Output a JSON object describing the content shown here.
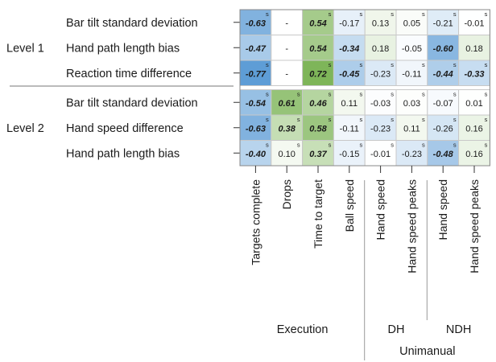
{
  "chart_data": {
    "type": "heatmap",
    "title": "",
    "row_groups": [
      {
        "label": "Level 1",
        "rows": [
          {
            "label": "Bar tilt standard deviation",
            "cells": [
              {
                "text": "-0.63",
                "value": -0.63,
                "sig": true,
                "bold": true
              },
              {
                "text": "-",
                "value": null,
                "sig": false,
                "bold": false
              },
              {
                "text": "0.54",
                "value": 0.54,
                "sig": true,
                "bold": true
              },
              {
                "text": "-0.17",
                "value": -0.17,
                "sig": true,
                "bold": false
              },
              {
                "text": "0.13",
                "value": 0.13,
                "sig": true,
                "bold": false
              },
              {
                "text": "0.05",
                "value": 0.05,
                "sig": true,
                "bold": false
              },
              {
                "text": "-0.21",
                "value": -0.21,
                "sig": true,
                "bold": false
              },
              {
                "text": "-0.01",
                "value": -0.01,
                "sig": true,
                "bold": false
              }
            ]
          },
          {
            "label": "Hand path length bias",
            "cells": [
              {
                "text": "-0.47",
                "value": -0.47,
                "sig": false,
                "bold": true
              },
              {
                "text": "-",
                "value": null,
                "sig": false,
                "bold": false
              },
              {
                "text": "0.54",
                "value": 0.54,
                "sig": false,
                "bold": true
              },
              {
                "text": "-0.34",
                "value": -0.34,
                "sig": false,
                "bold": true
              },
              {
                "text": "0.18",
                "value": 0.18,
                "sig": false,
                "bold": false
              },
              {
                "text": "-0.05",
                "value": -0.05,
                "sig": false,
                "bold": false
              },
              {
                "text": "-0.60",
                "value": -0.6,
                "sig": false,
                "bold": true
              },
              {
                "text": "0.18",
                "value": 0.18,
                "sig": false,
                "bold": false
              }
            ]
          },
          {
            "label": "Reaction time difference",
            "cells": [
              {
                "text": "-0.77",
                "value": -0.77,
                "sig": true,
                "bold": true
              },
              {
                "text": "-",
                "value": null,
                "sig": false,
                "bold": false
              },
              {
                "text": "0.72",
                "value": 0.72,
                "sig": true,
                "bold": true
              },
              {
                "text": "-0.45",
                "value": -0.45,
                "sig": true,
                "bold": true
              },
              {
                "text": "-0.23",
                "value": -0.23,
                "sig": true,
                "bold": false
              },
              {
                "text": "-0.11",
                "value": -0.11,
                "sig": true,
                "bold": false
              },
              {
                "text": "-0.44",
                "value": -0.44,
                "sig": true,
                "bold": true
              },
              {
                "text": "-0.33",
                "value": -0.33,
                "sig": true,
                "bold": true
              }
            ]
          }
        ]
      },
      {
        "label": "Level 2",
        "rows": [
          {
            "label": "Bar tilt standard deviation",
            "cells": [
              {
                "text": "-0.54",
                "value": -0.54,
                "sig": true,
                "bold": true
              },
              {
                "text": "0.61",
                "value": 0.61,
                "sig": true,
                "bold": true
              },
              {
                "text": "0.46",
                "value": 0.46,
                "sig": true,
                "bold": true
              },
              {
                "text": "0.11",
                "value": 0.11,
                "sig": true,
                "bold": false
              },
              {
                "text": "-0.03",
                "value": -0.03,
                "sig": true,
                "bold": false
              },
              {
                "text": "0.03",
                "value": 0.03,
                "sig": true,
                "bold": false
              },
              {
                "text": "-0.07",
                "value": -0.07,
                "sig": true,
                "bold": false
              },
              {
                "text": "0.01",
                "value": 0.01,
                "sig": true,
                "bold": false
              }
            ]
          },
          {
            "label": "Hand speed difference",
            "cells": [
              {
                "text": "-0.63",
                "value": -0.63,
                "sig": true,
                "bold": true
              },
              {
                "text": "0.38",
                "value": 0.38,
                "sig": true,
                "bold": true
              },
              {
                "text": "0.58",
                "value": 0.58,
                "sig": true,
                "bold": true
              },
              {
                "text": "-0.11",
                "value": -0.11,
                "sig": true,
                "bold": false
              },
              {
                "text": "-0.23",
                "value": -0.23,
                "sig": true,
                "bold": false
              },
              {
                "text": "0.11",
                "value": 0.11,
                "sig": true,
                "bold": false
              },
              {
                "text": "-0.26",
                "value": -0.26,
                "sig": true,
                "bold": false
              },
              {
                "text": "0.16",
                "value": 0.16,
                "sig": true,
                "bold": false
              }
            ]
          },
          {
            "label": "Hand path length bias",
            "cells": [
              {
                "text": "-0.40",
                "value": -0.4,
                "sig": true,
                "bold": true
              },
              {
                "text": "0.10",
                "value": 0.1,
                "sig": true,
                "bold": false
              },
              {
                "text": "0.37",
                "value": 0.37,
                "sig": true,
                "bold": true
              },
              {
                "text": "-0.15",
                "value": -0.15,
                "sig": true,
                "bold": false
              },
              {
                "text": "-0.01",
                "value": -0.01,
                "sig": true,
                "bold": false
              },
              {
                "text": "-0.23",
                "value": -0.23,
                "sig": true,
                "bold": false
              },
              {
                "text": "-0.48",
                "value": -0.48,
                "sig": true,
                "bold": true
              },
              {
                "text": "0.16",
                "value": 0.16,
                "sig": true,
                "bold": false
              }
            ]
          }
        ]
      }
    ],
    "columns": [
      "Targets complete",
      "Drops",
      "Time to target",
      "Ball speed",
      "Hand speed",
      "Hand speed peaks",
      "Hand speed",
      "Hand speed peaks"
    ],
    "column_groups": [
      {
        "label": "Execution",
        "columns": [
          0,
          1,
          2,
          3
        ]
      },
      {
        "label": "DH",
        "columns": [
          4,
          5
        ]
      },
      {
        "label": "NDH",
        "columns": [
          6,
          7
        ]
      }
    ],
    "super_groups": [
      {
        "label": "Unimanual",
        "columns": [
          4,
          5,
          6,
          7
        ]
      }
    ],
    "significance_marker": "s",
    "colors": {
      "negative": "#5b9bd5",
      "positive": "#70ad47",
      "text": "#1a1a1a",
      "grid": "#c8c8c8"
    }
  }
}
